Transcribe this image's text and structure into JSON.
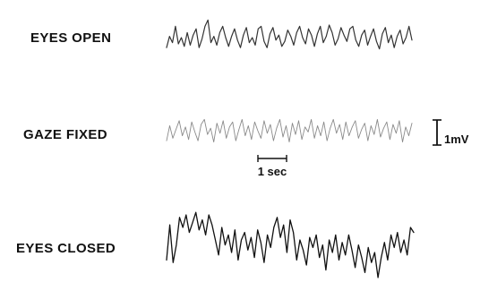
{
  "chart_data": {
    "type": "line",
    "title": "",
    "x_unit": "sec",
    "y_unit": "mV",
    "series": [
      {
        "name": "EYES OPEN",
        "color": "#333333",
        "values": [
          0.1,
          0.55,
          0.3,
          0.95,
          0.25,
          0.5,
          0.15,
          0.7,
          0.2,
          0.6,
          0.85,
          0.1,
          0.45,
          0.95,
          1.2,
          0.3,
          0.55,
          0.2,
          0.7,
          0.95,
          0.5,
          0.15,
          0.55,
          0.85,
          0.4,
          0.1,
          0.6,
          0.9,
          0.3,
          0.5,
          0.2,
          0.85,
          0.95,
          0.35,
          0.1,
          0.65,
          0.9,
          0.4,
          0.6,
          0.15,
          0.35,
          0.8,
          0.55,
          0.2,
          0.7,
          0.95,
          0.5,
          0.25,
          0.85,
          0.6,
          0.15,
          0.65,
          0.95,
          0.3,
          0.55,
          1.0,
          0.7,
          0.2,
          0.45,
          0.9,
          0.6,
          0.35,
          0.85,
          0.95,
          0.4,
          0.15,
          0.6,
          0.8,
          0.2,
          0.55,
          0.85,
          0.35,
          0.05,
          0.65,
          0.9,
          0.3,
          0.6,
          0.1,
          0.55,
          0.8,
          0.25,
          0.5,
          0.95,
          0.4
        ]
      },
      {
        "name": "GAZE FIXED",
        "color": "#8a8a8a",
        "values": [
          0.1,
          0.7,
          0.2,
          0.55,
          0.9,
          0.3,
          0.65,
          0.15,
          0.85,
          0.45,
          0.1,
          0.75,
          0.95,
          0.35,
          0.6,
          0.05,
          0.8,
          0.4,
          0.9,
          0.2,
          0.65,
          0.85,
          0.1,
          0.55,
          0.95,
          0.3,
          0.7,
          0.15,
          0.85,
          0.5,
          0.2,
          0.9,
          0.4,
          0.75,
          0.1,
          0.6,
          0.95,
          0.25,
          0.7,
          0.05,
          0.8,
          0.35,
          0.9,
          0.15,
          0.65,
          0.45,
          0.95,
          0.2,
          0.7,
          0.3,
          0.85,
          0.1,
          0.6,
          0.95,
          0.4,
          0.75,
          0.15,
          0.85,
          0.3,
          0.65,
          0.9,
          0.2,
          0.55,
          0.8,
          0.1,
          0.7,
          0.35,
          0.95,
          0.25,
          0.6,
          0.85,
          0.15,
          0.75,
          0.4,
          0.9,
          0.05,
          0.65,
          0.3,
          0.8
        ]
      },
      {
        "name": "EYES CLOSED",
        "color": "#111111",
        "values": [
          0.2,
          1.6,
          0.1,
          0.8,
          1.9,
          1.5,
          2.0,
          1.3,
          1.7,
          2.1,
          1.4,
          1.8,
          1.2,
          2.0,
          1.6,
          1.0,
          0.4,
          1.5,
          0.8,
          1.2,
          0.5,
          1.4,
          0.2,
          1.0,
          1.3,
          0.6,
          1.1,
          0.3,
          1.4,
          0.9,
          0.1,
          1.2,
          0.7,
          1.5,
          1.9,
          1.1,
          1.6,
          0.5,
          1.8,
          1.3,
          0.2,
          1.0,
          0.6,
          0.0,
          1.1,
          0.7,
          1.2,
          0.3,
          0.8,
          -0.2,
          1.0,
          0.5,
          1.2,
          0.2,
          0.9,
          0.4,
          1.2,
          0.6,
          -0.1,
          0.8,
          0.3,
          -0.3,
          0.7,
          0.1,
          0.5,
          -0.5,
          0.3,
          0.9,
          0.2,
          1.2,
          0.7,
          1.3,
          0.5,
          1.0,
          0.4,
          1.5,
          1.3
        ]
      }
    ],
    "scale_bars": {
      "time": {
        "value": 1,
        "label": "1 sec"
      },
      "amplitude": {
        "value": 1,
        "label": "1mV"
      }
    },
    "colors": {
      "text": "#111111",
      "background": "#ffffff"
    }
  }
}
